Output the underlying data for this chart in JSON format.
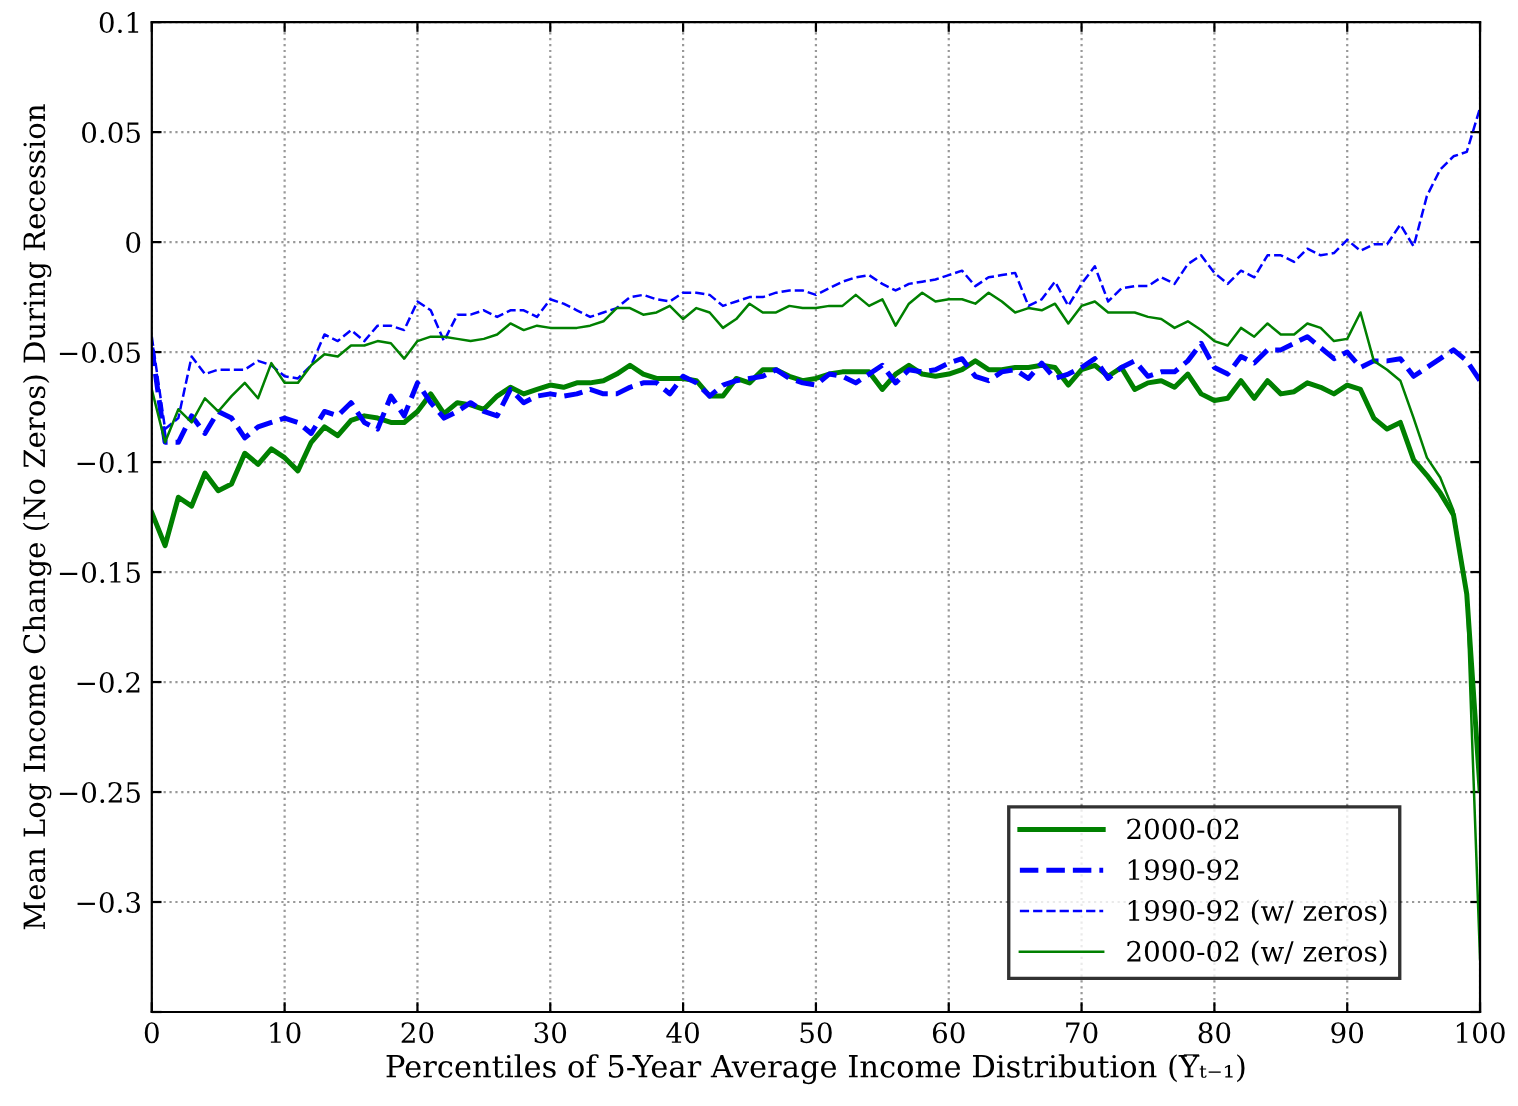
{
  "chart_data": {
    "type": "line",
    "xlabel": "Percentiles of 5-Year Average Income Distribution (Y̅ₜ₋₁)",
    "ylabel": "Mean Log Income Change (No Zeros) During Recession",
    "x": [
      0,
      1,
      2,
      3,
      4,
      5,
      6,
      7,
      8,
      9,
      10,
      11,
      12,
      13,
      14,
      15,
      16,
      17,
      18,
      19,
      20,
      21,
      22,
      23,
      24,
      25,
      26,
      27,
      28,
      29,
      30,
      31,
      32,
      33,
      34,
      35,
      36,
      37,
      38,
      39,
      40,
      41,
      42,
      43,
      44,
      45,
      46,
      47,
      48,
      49,
      50,
      51,
      52,
      53,
      54,
      55,
      56,
      57,
      58,
      59,
      60,
      61,
      62,
      63,
      64,
      65,
      66,
      67,
      68,
      69,
      70,
      71,
      72,
      73,
      74,
      75,
      76,
      77,
      78,
      79,
      80,
      81,
      82,
      83,
      84,
      85,
      86,
      87,
      88,
      89,
      90,
      91,
      92,
      93,
      94,
      95,
      96,
      97,
      98,
      99,
      100
    ],
    "xlim": [
      0,
      100
    ],
    "xticks": [
      0,
      10,
      20,
      30,
      40,
      50,
      60,
      70,
      80,
      90,
      100
    ],
    "ylim": [
      -0.35,
      0.1
    ],
    "yticks": [
      {
        "value": -0.35,
        "label": null
      },
      -0.3,
      -0.25,
      -0.2,
      -0.15,
      -0.1,
      -0.05,
      0,
      0.05,
      0.1
    ],
    "grid": true,
    "legend": "bottom right",
    "marker": "none",
    "series": [
      {
        "name": "2000-02",
        "color": "#008000",
        "line_style": "solid",
        "values": [
          -0.123,
          -0.138,
          -0.116,
          -0.12,
          -0.105,
          -0.113,
          -0.11,
          -0.096,
          -0.101,
          -0.094,
          -0.098,
          -0.104,
          -0.091,
          -0.084,
          -0.088,
          -0.081,
          -0.079,
          -0.08,
          -0.082,
          -0.082,
          -0.077,
          -0.069,
          -0.078,
          -0.073,
          -0.074,
          -0.076,
          -0.07,
          -0.066,
          -0.069,
          -0.067,
          -0.065,
          -0.066,
          -0.064,
          -0.064,
          -0.063,
          -0.06,
          -0.056,
          -0.06,
          -0.062,
          -0.062,
          -0.062,
          -0.063,
          -0.07,
          -0.07,
          -0.062,
          -0.064,
          -0.058,
          -0.058,
          -0.061,
          -0.063,
          -0.062,
          -0.06,
          -0.059,
          -0.059,
          -0.059,
          -0.067,
          -0.06,
          -0.056,
          -0.06,
          -0.061,
          -0.06,
          -0.058,
          -0.054,
          -0.058,
          -0.058,
          -0.057,
          -0.057,
          -0.056,
          -0.057,
          -0.065,
          -0.058,
          -0.056,
          -0.061,
          -0.057,
          -0.067,
          -0.064,
          -0.063,
          -0.066,
          -0.06,
          -0.069,
          -0.072,
          -0.071,
          -0.063,
          -0.071,
          -0.063,
          -0.069,
          -0.068,
          -0.064,
          -0.066,
          -0.069,
          -0.065,
          -0.067,
          -0.08,
          -0.085,
          -0.082,
          -0.099,
          -0.106,
          -0.114,
          -0.124,
          -0.16,
          -0.249
        ]
      },
      {
        "name": "1990-92",
        "color": "#0000ff",
        "line_style": "dashed",
        "values": [
          -0.048,
          -0.091,
          -0.091,
          -0.079,
          -0.087,
          -0.077,
          -0.08,
          -0.089,
          -0.084,
          -0.082,
          -0.08,
          -0.082,
          -0.087,
          -0.077,
          -0.079,
          -0.073,
          -0.082,
          -0.085,
          -0.07,
          -0.079,
          -0.064,
          -0.073,
          -0.08,
          -0.077,
          -0.073,
          -0.077,
          -0.079,
          -0.067,
          -0.073,
          -0.07,
          -0.069,
          -0.07,
          -0.069,
          -0.067,
          -0.069,
          -0.069,
          -0.066,
          -0.064,
          -0.064,
          -0.069,
          -0.061,
          -0.064,
          -0.07,
          -0.065,
          -0.063,
          -0.062,
          -0.061,
          -0.058,
          -0.062,
          -0.064,
          -0.065,
          -0.06,
          -0.061,
          -0.064,
          -0.06,
          -0.056,
          -0.064,
          -0.058,
          -0.059,
          -0.058,
          -0.055,
          -0.053,
          -0.061,
          -0.063,
          -0.059,
          -0.058,
          -0.062,
          -0.055,
          -0.062,
          -0.06,
          -0.057,
          -0.053,
          -0.062,
          -0.057,
          -0.054,
          -0.061,
          -0.059,
          -0.059,
          -0.054,
          -0.046,
          -0.057,
          -0.06,
          -0.052,
          -0.055,
          -0.049,
          -0.049,
          -0.046,
          -0.043,
          -0.048,
          -0.053,
          -0.05,
          -0.057,
          -0.054,
          -0.054,
          -0.053,
          -0.061,
          -0.057,
          -0.053,
          -0.049,
          -0.054,
          -0.063
        ]
      },
      {
        "name": "1990-92 (w/ zeros)",
        "color": "#0000ff",
        "line_style": "dashed",
        "values": [
          -0.043,
          -0.085,
          -0.08,
          -0.052,
          -0.06,
          -0.058,
          -0.058,
          -0.058,
          -0.054,
          -0.056,
          -0.061,
          -0.062,
          -0.056,
          -0.042,
          -0.045,
          -0.04,
          -0.045,
          -0.038,
          -0.038,
          -0.04,
          -0.027,
          -0.031,
          -0.045,
          -0.033,
          -0.033,
          -0.031,
          -0.034,
          -0.031,
          -0.031,
          -0.034,
          -0.026,
          -0.028,
          -0.031,
          -0.034,
          -0.032,
          -0.03,
          -0.025,
          -0.024,
          -0.026,
          -0.027,
          -0.023,
          -0.023,
          -0.024,
          -0.029,
          -0.027,
          -0.025,
          -0.025,
          -0.023,
          -0.022,
          -0.022,
          -0.024,
          -0.021,
          -0.018,
          -0.016,
          -0.015,
          -0.019,
          -0.022,
          -0.019,
          -0.018,
          -0.017,
          -0.015,
          -0.013,
          -0.02,
          -0.016,
          -0.015,
          -0.014,
          -0.029,
          -0.026,
          -0.018,
          -0.029,
          -0.019,
          -0.011,
          -0.027,
          -0.021,
          -0.02,
          -0.02,
          -0.016,
          -0.019,
          -0.01,
          -0.006,
          -0.014,
          -0.019,
          -0.013,
          -0.016,
          -0.006,
          -0.006,
          -0.009,
          -0.003,
          -0.006,
          -0.005,
          0.001,
          -0.004,
          -0.001,
          -0.001,
          0.008,
          -0.002,
          0.021,
          0.033,
          0.039,
          0.041,
          0.061
        ]
      },
      {
        "name": "2000-02 (w/ zeros)",
        "color": "#008000",
        "line_style": "solid",
        "values": [
          -0.067,
          -0.091,
          -0.076,
          -0.082,
          -0.071,
          -0.077,
          -0.07,
          -0.064,
          -0.071,
          -0.055,
          -0.064,
          -0.064,
          -0.056,
          -0.051,
          -0.052,
          -0.047,
          -0.047,
          -0.045,
          -0.046,
          -0.053,
          -0.045,
          -0.043,
          -0.043,
          -0.044,
          -0.045,
          -0.044,
          -0.042,
          -0.037,
          -0.04,
          -0.038,
          -0.039,
          -0.039,
          -0.039,
          -0.038,
          -0.036,
          -0.03,
          -0.03,
          -0.033,
          -0.032,
          -0.029,
          -0.035,
          -0.03,
          -0.032,
          -0.039,
          -0.035,
          -0.028,
          -0.032,
          -0.032,
          -0.029,
          -0.03,
          -0.03,
          -0.029,
          -0.029,
          -0.024,
          -0.029,
          -0.026,
          -0.038,
          -0.028,
          -0.023,
          -0.027,
          -0.026,
          -0.026,
          -0.028,
          -0.023,
          -0.027,
          -0.032,
          -0.03,
          -0.031,
          -0.028,
          -0.037,
          -0.029,
          -0.027,
          -0.032,
          -0.032,
          -0.032,
          -0.034,
          -0.035,
          -0.039,
          -0.036,
          -0.04,
          -0.045,
          -0.047,
          -0.039,
          -0.043,
          -0.037,
          -0.042,
          -0.042,
          -0.037,
          -0.039,
          -0.045,
          -0.044,
          -0.032,
          -0.054,
          -0.058,
          -0.063,
          -0.08,
          -0.098,
          -0.107,
          -0.122,
          -0.159,
          -0.326
        ]
      }
    ]
  }
}
